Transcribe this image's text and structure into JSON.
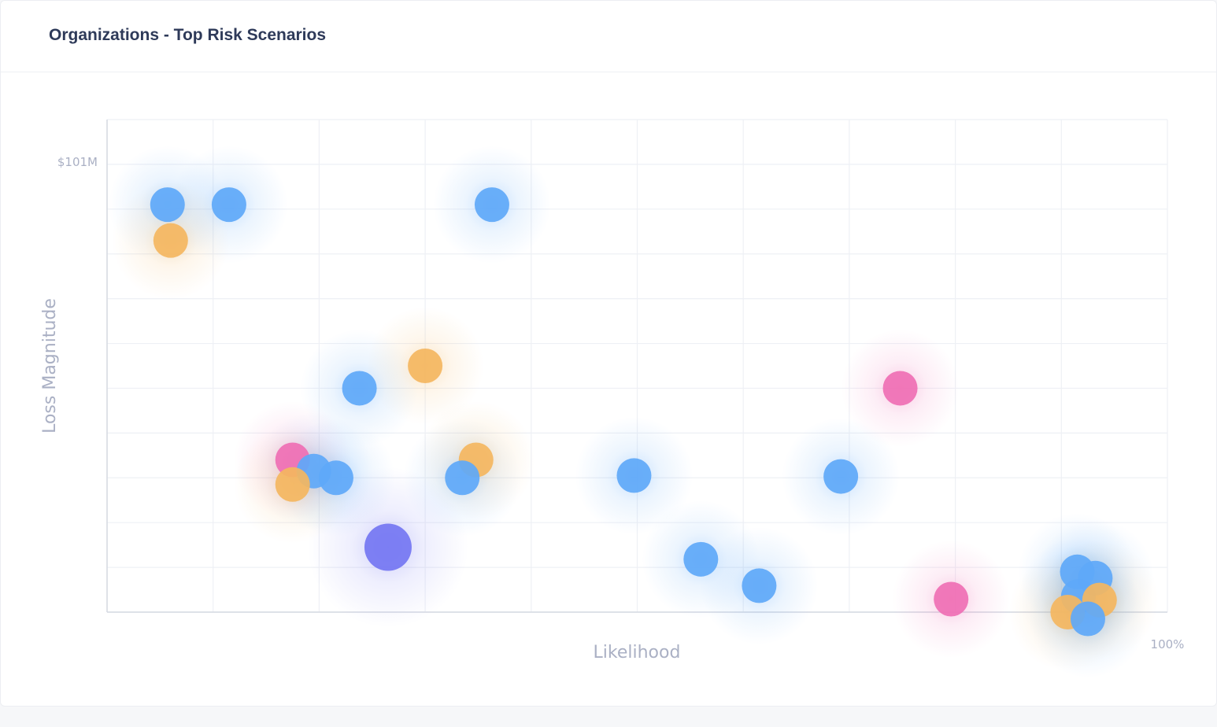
{
  "card": {
    "title": "Organizations - Top Risk Scenarios"
  },
  "colors": {
    "blue": "#5ea8f8",
    "orange": "#f4b65f",
    "pink": "#ef6fb4",
    "purple": "#7476f2",
    "grid": "#eef0f5",
    "axis": "#d5d9e2"
  },
  "chart_data": {
    "type": "scatter",
    "title": "",
    "xlabel": "Likelihood",
    "ylabel": "Loss Magnitude",
    "xlim": [
      0,
      100
    ],
    "ylim": [
      0,
      110
    ],
    "x_tick_labels": [
      "100%"
    ],
    "y_tick_labels": [
      "$101M"
    ],
    "grid": true,
    "points": [
      {
        "x": 5.7,
        "y": 91,
        "size": 22,
        "color": "blue"
      },
      {
        "x": 11.5,
        "y": 91,
        "size": 22,
        "color": "blue"
      },
      {
        "x": 36.3,
        "y": 91,
        "size": 22,
        "color": "blue"
      },
      {
        "x": 6.0,
        "y": 83,
        "size": 22,
        "color": "orange"
      },
      {
        "x": 30.0,
        "y": 55,
        "size": 22,
        "color": "orange"
      },
      {
        "x": 23.8,
        "y": 50,
        "size": 22,
        "color": "blue"
      },
      {
        "x": 74.8,
        "y": 50,
        "size": 22,
        "color": "pink"
      },
      {
        "x": 17.5,
        "y": 34,
        "size": 22,
        "color": "pink"
      },
      {
        "x": 19.5,
        "y": 31.5,
        "size": 22,
        "color": "blue"
      },
      {
        "x": 21.6,
        "y": 30,
        "size": 22,
        "color": "blue"
      },
      {
        "x": 17.5,
        "y": 28.5,
        "size": 22,
        "color": "orange"
      },
      {
        "x": 34.8,
        "y": 34,
        "size": 22,
        "color": "orange"
      },
      {
        "x": 33.5,
        "y": 30,
        "size": 22,
        "color": "blue"
      },
      {
        "x": 49.7,
        "y": 30.5,
        "size": 22,
        "color": "blue"
      },
      {
        "x": 69.2,
        "y": 30.3,
        "size": 22,
        "color": "blue"
      },
      {
        "x": 26.5,
        "y": 14.5,
        "size": 30,
        "color": "purple"
      },
      {
        "x": 56.0,
        "y": 11.8,
        "size": 22,
        "color": "blue"
      },
      {
        "x": 61.5,
        "y": 5.9,
        "size": 22,
        "color": "blue"
      },
      {
        "x": 79.6,
        "y": 2.9,
        "size": 22,
        "color": "pink"
      },
      {
        "x": 91.5,
        "y": 9,
        "size": 22,
        "color": "blue"
      },
      {
        "x": 93.2,
        "y": 7.6,
        "size": 22,
        "color": "blue"
      },
      {
        "x": 91.6,
        "y": 3.5,
        "size": 22,
        "color": "blue"
      },
      {
        "x": 93.6,
        "y": 2.7,
        "size": 22,
        "color": "orange"
      },
      {
        "x": 90.6,
        "y": 0,
        "size": 22,
        "color": "orange"
      },
      {
        "x": 92.5,
        "y": -1.5,
        "size": 22,
        "color": "blue"
      }
    ]
  }
}
